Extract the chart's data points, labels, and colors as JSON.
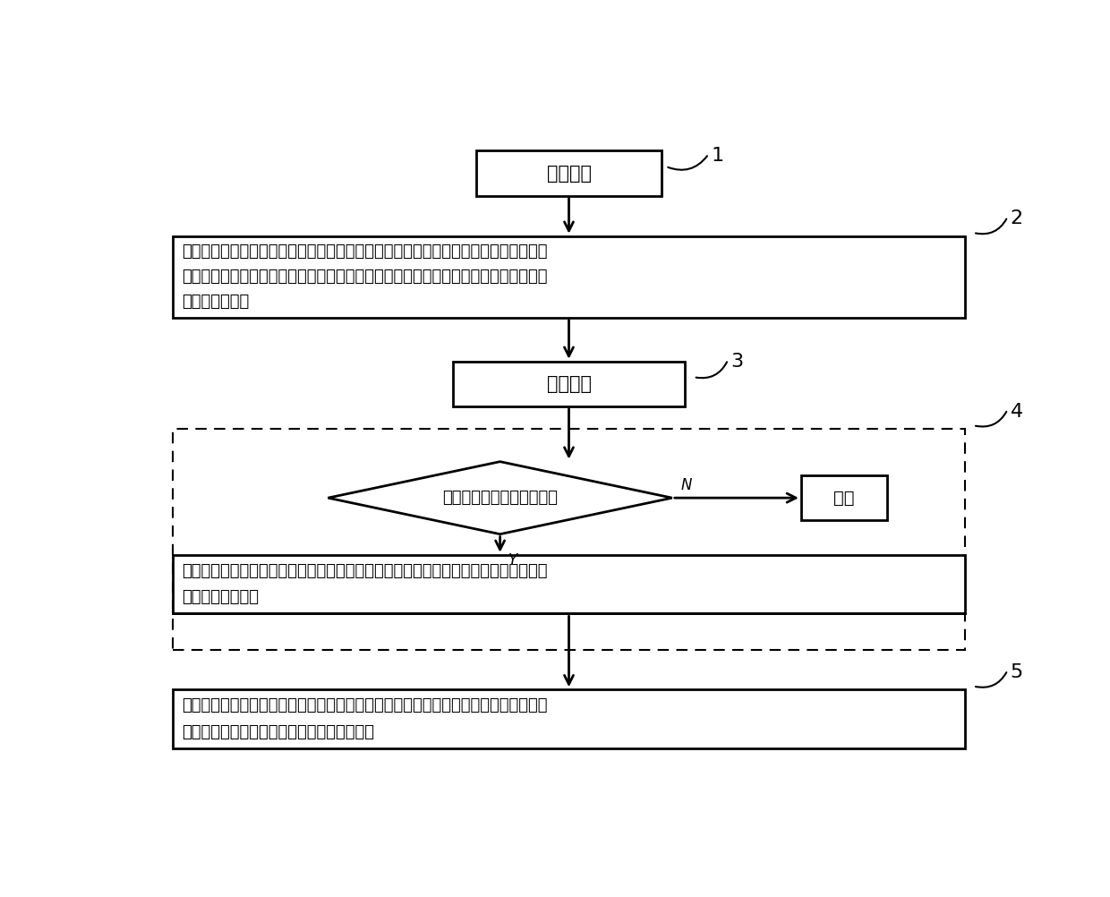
{
  "bg_color": "#ffffff",
  "box1_text": "创建项目",
  "box2_text_lines": [
    "向云端服务器上传测序数据，在项目管理模块中建立项目，同时在云端服务器上传客户",
    "的数据库或者选择使用线上的数据库，并且在该项目管理模块中可以进行项目锁定或者",
    "共享给他人操作"
  ],
  "box3_text": "建立任务",
  "diamond_text": "进行判定数据质控是否合格",
  "error_text": "报错",
  "box4_text_lines": [
    "在基础分析任务提交模块中，用户可以通过可视化界面对测序数据进行参数分析，分析",
    "之后产生项目文件"
  ],
  "box5_text_lines": [
    "产生的项目文件传送至交互式结果分析模块中进行交互式分析，根据用户需求对项目文",
    "件进行二次分析和统计，得到直观呼现的报告"
  ],
  "label1": "1",
  "label2": "2",
  "label3": "3",
  "label4": "4",
  "label5": "5",
  "line_color": "#000000",
  "text_color": "#000000",
  "box_fill": "#ffffff",
  "box_edge": "#000000"
}
